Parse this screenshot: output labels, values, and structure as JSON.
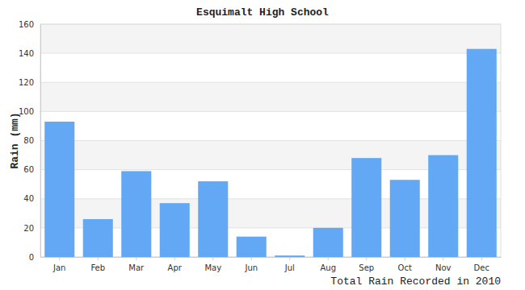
{
  "chart_data": {
    "type": "bar",
    "title": "Esquimalt High School",
    "ylabel": "Rain (mm)",
    "xlabel": "Total Rain Recorded in 2010",
    "categories": [
      "Jan",
      "Feb",
      "Mar",
      "Apr",
      "May",
      "Jun",
      "Jul",
      "Aug",
      "Sep",
      "Oct",
      "Nov",
      "Dec"
    ],
    "values": [
      93,
      26,
      59,
      37,
      52,
      14,
      1,
      20,
      68,
      53,
      70,
      143
    ],
    "color": "#62a8f5",
    "ylim": [
      0,
      160
    ],
    "yticks": [
      0,
      20,
      40,
      60,
      80,
      100,
      120,
      140,
      160
    ],
    "grid": true
  }
}
